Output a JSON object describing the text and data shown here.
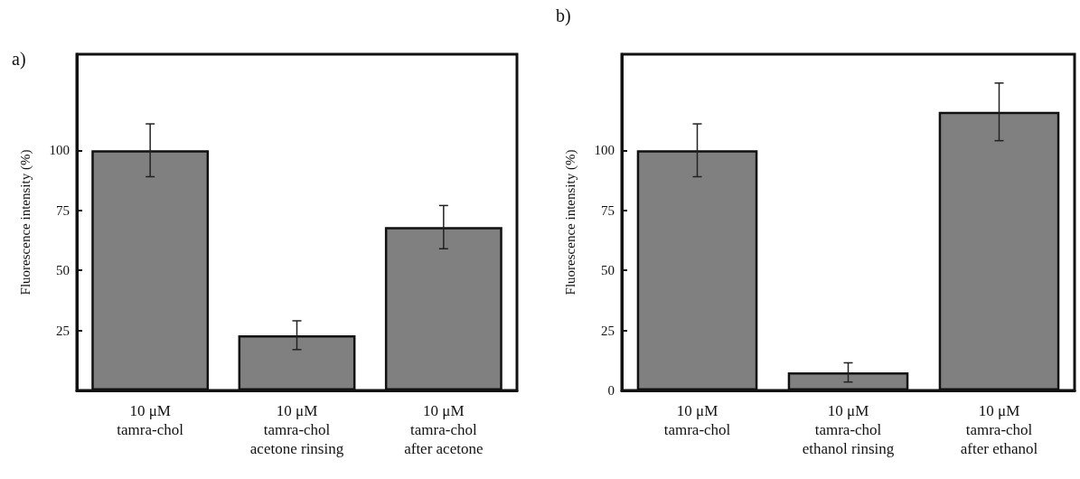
{
  "chart_data": [
    {
      "type": "bar",
      "title": "a)",
      "ylabel": "Fluorescence intensity (%)",
      "categories": [
        "10 μM\ntamra-chol",
        "10 μM\ntamra-chol\nacetone rinsing",
        "10 μM\ntamra-chol\nafter acetone"
      ],
      "values": [
        100,
        23,
        68
      ],
      "errors": [
        11,
        6,
        9
      ],
      "color": "#808080",
      "ylim": [
        0,
        140
      ],
      "yticks": [
        25,
        50,
        75,
        100
      ],
      "grid": false
    },
    {
      "type": "bar",
      "title": "b)",
      "ylabel": "Fluorescence intensity (%)",
      "categories": [
        "10 μM\ntamra-chol",
        "10 μM\ntamra-chol\nethanol rinsing",
        "10 μM\ntamra-chol\nafter ethanol"
      ],
      "values": [
        100,
        7.5,
        116
      ],
      "errors": [
        11,
        4,
        12
      ],
      "color": "#808080",
      "ylim": [
        0,
        140
      ],
      "yticks": [
        0,
        25,
        50,
        75,
        100
      ],
      "grid": false
    }
  ]
}
